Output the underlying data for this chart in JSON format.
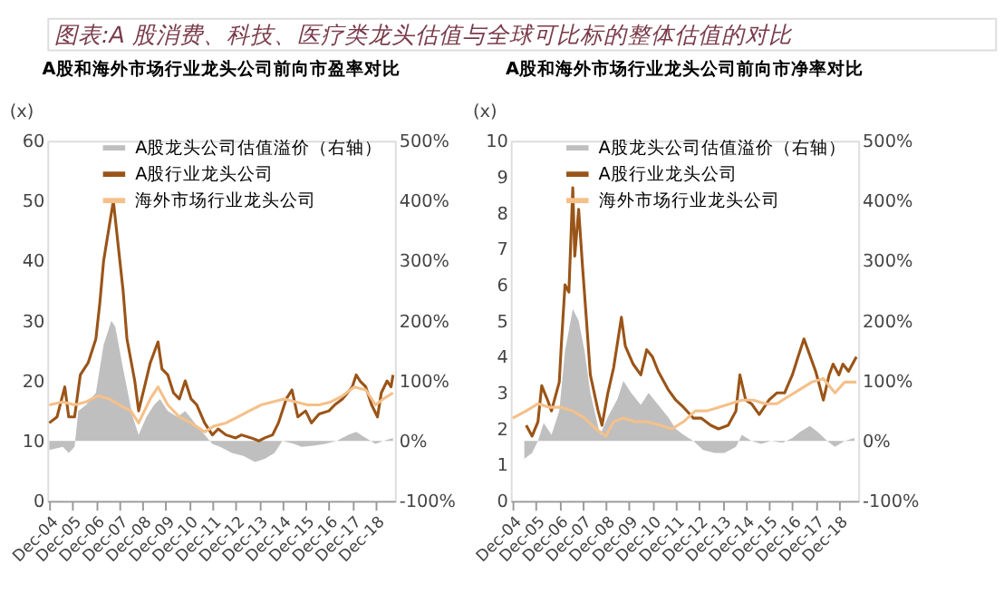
{
  "chart_data": [
    {
      "type": "line",
      "annotations": [
        "图表:A 股消费、科技、医疗类龙头估值与全球可比标的整体估值的对比"
      ],
      "title": "A股和海外市场行业龙头公司前向市盈率对比",
      "ylabel": "(x)",
      "legend": "top",
      "marker": "none",
      "line_style": "solid",
      "grid": false,
      "xlim": [
        "2004-11",
        "2019-10"
      ],
      "xticks": [
        {
          "value": "2004-12",
          "label": "Dec-04"
        },
        {
          "value": "2005-12",
          "label": "Dec-05"
        },
        {
          "value": "2006-12",
          "label": "Dec-06"
        },
        {
          "value": "2007-12",
          "label": "Dec-07"
        },
        {
          "value": "2008-12",
          "label": "Dec-08"
        },
        {
          "value": "2009-12",
          "label": "Dec-09"
        },
        {
          "value": "2010-12",
          "label": "Dec-10"
        },
        {
          "value": "2011-12",
          "label": "Dec-11"
        },
        {
          "value": "2012-12",
          "label": "Dec-12"
        },
        {
          "value": "2013-12",
          "label": "Dec-13"
        },
        {
          "value": "2014-12",
          "label": "Dec-14"
        },
        {
          "value": "2015-12",
          "label": "Dec-15"
        },
        {
          "value": "2016-12",
          "label": "Dec-16"
        },
        {
          "value": "2017-12",
          "label": "Dec-17"
        },
        {
          "value": "2018-12",
          "label": "Dec-18"
        }
      ],
      "ylim": [
        0,
        60
      ],
      "yticks": [
        0,
        10,
        20,
        30,
        40,
        50,
        60
      ],
      "y2lim": [
        -100,
        500
      ],
      "y2ticks": [
        {
          "value": -100,
          "label": "-100%"
        },
        {
          "value": 0,
          "label": "0%"
        },
        {
          "value": 100,
          "label": "100%"
        },
        {
          "value": 200,
          "label": "200%"
        },
        {
          "value": 300,
          "label": "300%"
        },
        {
          "value": 400,
          "label": "400%"
        },
        {
          "value": 500,
          "label": "500%"
        }
      ],
      "series": [
        {
          "name": "A股龙头公司估值溢价（右轴）",
          "type": "area",
          "axis": "y2",
          "color": "#bfbfbf",
          "x": [
            "2004-12",
            "2005-07",
            "2005-10",
            "2006-01",
            "2006-03",
            "2006-07",
            "2006-12",
            "2007-04",
            "2007-08",
            "2007-10",
            "2008-02",
            "2008-07",
            "2008-10",
            "2009-02",
            "2009-06",
            "2009-09",
            "2010-01",
            "2010-06",
            "2010-10",
            "2011-03",
            "2011-08",
            "2011-12",
            "2012-04",
            "2012-10",
            "2013-04",
            "2013-10",
            "2014-03",
            "2014-08",
            "2014-12",
            "2015-06",
            "2015-10",
            "2016-04",
            "2016-10",
            "2017-04",
            "2017-10",
            "2018-02",
            "2018-07",
            "2018-12",
            "2019-04",
            "2019-09"
          ],
          "values": [
            -15,
            -10,
            -20,
            -10,
            50,
            60,
            80,
            160,
            200,
            190,
            120,
            40,
            10,
            40,
            60,
            70,
            50,
            40,
            50,
            30,
            10,
            -5,
            -10,
            -20,
            -25,
            -35,
            -30,
            -20,
            0,
            -5,
            -10,
            -8,
            -5,
            0,
            10,
            15,
            5,
            -5,
            0,
            5
          ]
        },
        {
          "name": "A股行业龙头公司",
          "color": "#9a5418",
          "x": [
            "2004-12",
            "2005-04",
            "2005-08",
            "2005-10",
            "2006-01",
            "2006-04",
            "2006-08",
            "2006-12",
            "2007-02",
            "2007-04",
            "2007-06",
            "2007-09",
            "2007-11",
            "2008-02",
            "2008-04",
            "2008-08",
            "2008-10",
            "2009-01",
            "2009-04",
            "2009-08",
            "2009-10",
            "2010-01",
            "2010-04",
            "2010-07",
            "2010-10",
            "2011-01",
            "2011-04",
            "2011-08",
            "2011-12",
            "2012-03",
            "2012-07",
            "2012-12",
            "2013-03",
            "2013-08",
            "2013-12",
            "2014-03",
            "2014-07",
            "2014-10",
            "2015-02",
            "2015-05",
            "2015-08",
            "2015-12",
            "2016-03",
            "2016-07",
            "2016-12",
            "2017-03",
            "2017-07",
            "2017-12",
            "2018-02",
            "2018-04",
            "2018-07",
            "2018-10",
            "2019-01",
            "2019-03",
            "2019-06",
            "2019-08",
            "2019-09"
          ],
          "values": [
            13,
            14,
            19,
            14,
            14,
            21,
            23,
            27,
            33,
            40,
            44,
            50,
            44,
            35,
            27,
            20,
            15,
            19,
            23,
            26.5,
            22,
            21,
            18,
            17,
            20,
            17,
            16,
            13,
            11,
            12,
            11,
            10.5,
            11,
            10.5,
            10,
            10.5,
            11,
            13,
            17,
            18.5,
            14,
            15,
            13,
            14.5,
            15,
            16,
            17,
            19,
            21,
            20,
            19,
            16,
            14,
            18,
            20,
            19,
            21
          ]
        },
        {
          "name": "海外市场行业龙头公司",
          "color": "#f5c08a",
          "x": [
            "2004-12",
            "2005-07",
            "2006-01",
            "2006-07",
            "2007-01",
            "2007-07",
            "2007-12",
            "2008-06",
            "2008-10",
            "2009-04",
            "2009-08",
            "2010-01",
            "2010-07",
            "2011-01",
            "2011-08",
            "2012-01",
            "2012-07",
            "2013-01",
            "2013-07",
            "2014-01",
            "2014-07",
            "2015-01",
            "2015-07",
            "2016-01",
            "2016-07",
            "2017-01",
            "2017-07",
            "2018-01",
            "2018-07",
            "2018-12",
            "2019-04",
            "2019-09"
          ],
          "values": [
            16,
            16.5,
            16,
            16.5,
            17.5,
            17,
            16,
            15,
            13,
            17,
            19,
            16,
            14,
            13,
            11.5,
            12.5,
            13,
            14,
            15,
            16,
            16.5,
            17,
            16.5,
            16,
            16,
            16.5,
            17.5,
            19,
            18.5,
            16,
            17,
            18
          ]
        }
      ]
    },
    {
      "type": "line",
      "title": "A股和海外市场行业龙头公司前向市净率对比",
      "ylabel": "(x)",
      "legend": "top",
      "marker": "none",
      "line_style": "solid",
      "grid": false,
      "xlim": [
        "2004-11",
        "2019-10"
      ],
      "xticks": [
        {
          "value": "2004-12",
          "label": "Dec-04"
        },
        {
          "value": "2005-12",
          "label": "Dec-05"
        },
        {
          "value": "2006-12",
          "label": "Dec-06"
        },
        {
          "value": "2007-12",
          "label": "Dec-07"
        },
        {
          "value": "2008-12",
          "label": "Dec-08"
        },
        {
          "value": "2009-12",
          "label": "Dec-09"
        },
        {
          "value": "2010-12",
          "label": "Dec-10"
        },
        {
          "value": "2011-12",
          "label": "Dec-11"
        },
        {
          "value": "2012-12",
          "label": "Dec-12"
        },
        {
          "value": "2013-12",
          "label": "Dec-13"
        },
        {
          "value": "2014-12",
          "label": "Dec-14"
        },
        {
          "value": "2015-12",
          "label": "Dec-15"
        },
        {
          "value": "2016-12",
          "label": "Dec-16"
        },
        {
          "value": "2017-12",
          "label": "Dec-17"
        },
        {
          "value": "2018-12",
          "label": "Dec-18"
        }
      ],
      "ylim": [
        0,
        10
      ],
      "yticks": [
        0,
        1,
        2,
        3,
        4,
        5,
        6,
        7,
        8,
        9,
        10
      ],
      "y2lim": [
        -100,
        500
      ],
      "y2ticks": [
        {
          "value": -100,
          "label": "-100%"
        },
        {
          "value": 0,
          "label": "0%"
        },
        {
          "value": 100,
          "label": "100%"
        },
        {
          "value": 200,
          "label": "200%"
        },
        {
          "value": 300,
          "label": "300%"
        },
        {
          "value": 400,
          "label": "400%"
        },
        {
          "value": 500,
          "label": "500%"
        }
      ],
      "series": [
        {
          "name": "A股龙头公司估值溢价（右轴）",
          "type": "area",
          "axis": "y2",
          "color": "#bfbfbf",
          "x": [
            "2005-06",
            "2005-10",
            "2006-01",
            "2006-04",
            "2006-08",
            "2006-12",
            "2007-03",
            "2007-07",
            "2007-10",
            "2008-01",
            "2008-04",
            "2008-09",
            "2009-01",
            "2009-06",
            "2009-09",
            "2010-01",
            "2010-06",
            "2010-10",
            "2011-03",
            "2011-08",
            "2011-12",
            "2012-04",
            "2012-09",
            "2013-02",
            "2013-08",
            "2014-01",
            "2014-07",
            "2014-10",
            "2015-03",
            "2015-08",
            "2016-01",
            "2016-07",
            "2016-12",
            "2017-04",
            "2017-09",
            "2018-01",
            "2018-06",
            "2018-10",
            "2019-03",
            "2019-08"
          ],
          "values": [
            -30,
            -20,
            0,
            30,
            10,
            50,
            150,
            220,
            200,
            150,
            80,
            10,
            40,
            70,
            100,
            80,
            60,
            80,
            60,
            40,
            20,
            10,
            0,
            -15,
            -20,
            -20,
            -10,
            10,
            0,
            -5,
            0,
            -3,
            5,
            15,
            25,
            15,
            0,
            -10,
            0,
            5
          ]
        },
        {
          "name": "A股行业龙头公司",
          "color": "#9a5418",
          "x": [
            "2005-07",
            "2005-10",
            "2006-01",
            "2006-03",
            "2006-06",
            "2006-08",
            "2006-12",
            "2007-01",
            "2007-03",
            "2007-05",
            "2007-07",
            "2007-08",
            "2007-10",
            "2007-12",
            "2008-02",
            "2008-04",
            "2008-08",
            "2008-10",
            "2009-01",
            "2009-04",
            "2009-08",
            "2009-10",
            "2010-02",
            "2010-06",
            "2010-09",
            "2010-12",
            "2011-03",
            "2011-08",
            "2011-12",
            "2012-04",
            "2012-09",
            "2013-01",
            "2013-06",
            "2013-10",
            "2014-03",
            "2014-07",
            "2014-09",
            "2014-12",
            "2015-03",
            "2015-07",
            "2015-12",
            "2016-04",
            "2016-08",
            "2016-12",
            "2017-03",
            "2017-06",
            "2017-08",
            "2017-12",
            "2018-02",
            "2018-04",
            "2018-07",
            "2018-09",
            "2018-12",
            "2019-02",
            "2019-05",
            "2019-09"
          ],
          "values": [
            2.1,
            1.8,
            2.2,
            3.2,
            2.8,
            2.5,
            3.3,
            4.3,
            6,
            5.8,
            8.7,
            6.8,
            8.1,
            6.5,
            5,
            3.5,
            2.5,
            2.1,
            3,
            3.7,
            5.1,
            4.3,
            3.8,
            3.5,
            4.2,
            4.0,
            3.6,
            3.1,
            2.8,
            2.6,
            2.3,
            2.3,
            2.1,
            2.0,
            2.1,
            2.5,
            3.5,
            2.8,
            2.7,
            2.4,
            2.8,
            3.0,
            3.0,
            3.5,
            4.0,
            4.5,
            4.2,
            3.6,
            3.2,
            2.8,
            3.5,
            3.8,
            3.5,
            3.8,
            3.6,
            4.0
          ]
        },
        {
          "name": "海外市场行业龙头公司",
          "color": "#f5c08a",
          "x": [
            "2004-12",
            "2005-07",
            "2006-01",
            "2006-07",
            "2007-01",
            "2007-07",
            "2008-01",
            "2008-07",
            "2008-12",
            "2009-04",
            "2009-09",
            "2010-03",
            "2010-09",
            "2011-04",
            "2011-10",
            "2012-04",
            "2012-10",
            "2013-04",
            "2013-10",
            "2014-04",
            "2014-10",
            "2015-04",
            "2015-10",
            "2016-04",
            "2016-10",
            "2017-04",
            "2017-10",
            "2018-04",
            "2018-10",
            "2019-03",
            "2019-09"
          ],
          "values": [
            2.3,
            2.5,
            2.7,
            2.6,
            2.6,
            2.5,
            2.3,
            2.0,
            1.8,
            2.2,
            2.3,
            2.2,
            2.2,
            2.1,
            2.0,
            2.2,
            2.5,
            2.5,
            2.6,
            2.7,
            2.8,
            2.8,
            2.7,
            2.7,
            2.9,
            3.1,
            3.3,
            3.4,
            3.0,
            3.3,
            3.3
          ]
        }
      ]
    }
  ]
}
